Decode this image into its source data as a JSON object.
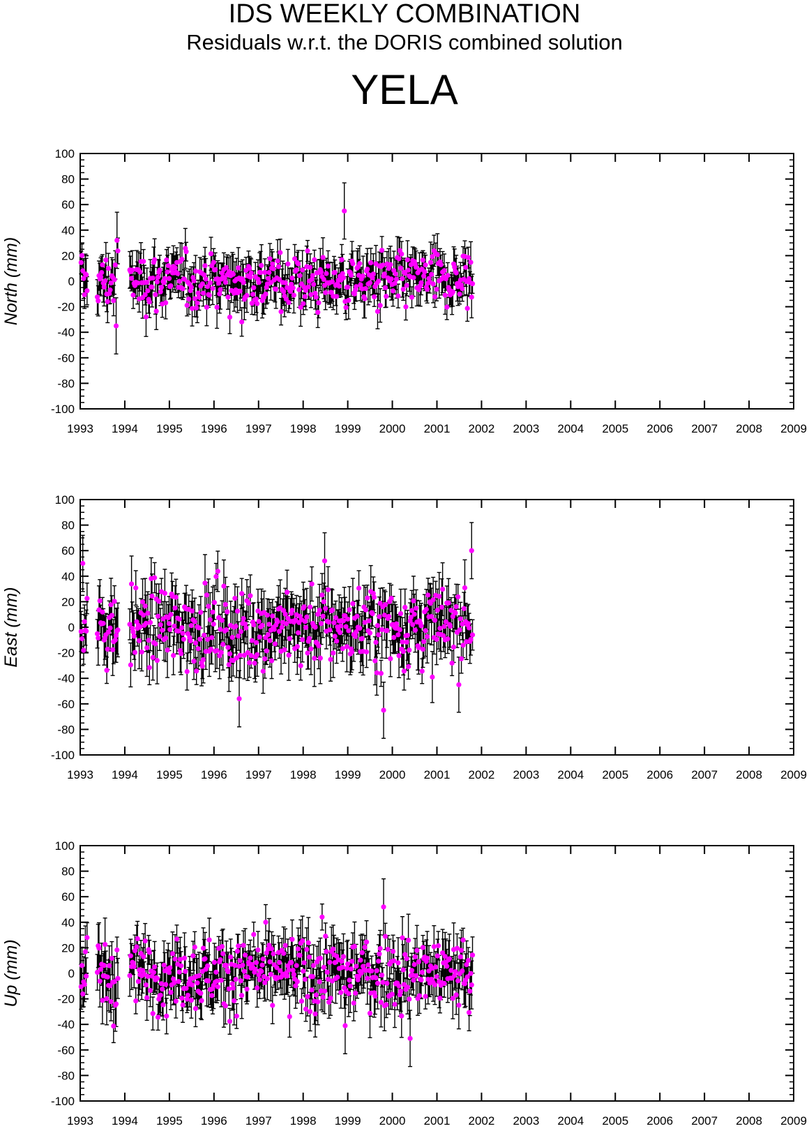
{
  "header": {
    "title": "IDS WEEKLY COMBINATION",
    "subtitle": "Residuals w.r.t. the DORIS combined solution",
    "station": "YELA"
  },
  "colors": {
    "marker": "#ff00ff",
    "errorbar": "#000000",
    "axes": "#000000"
  },
  "chart_data": [
    {
      "type": "scatter",
      "panel": "north",
      "ylabel": "North (mm)",
      "xlim": [
        1993,
        2009
      ],
      "ylim": [
        -100,
        100
      ],
      "xticks": [
        "1993",
        "1994",
        "1995",
        "1996",
        "1997",
        "1998",
        "1999",
        "2000",
        "2001",
        "2002",
        "2003",
        "2004",
        "2005",
        "2006",
        "2007",
        "2008",
        "2009"
      ],
      "yticks": [
        "100",
        "80",
        "60",
        "40",
        "20",
        "0",
        "-20",
        "-40",
        "-60",
        "-80",
        "-100"
      ],
      "series": [
        {
          "x": [],
          "y": [],
          "err": []
        }
      ]
    },
    {
      "type": "scatter",
      "panel": "east",
      "ylabel": "East (mm)",
      "xlim": [
        1993,
        2009
      ],
      "ylim": [
        -100,
        100
      ],
      "xticks": [
        "1993",
        "1994",
        "1995",
        "1996",
        "1997",
        "1998",
        "1999",
        "2000",
        "2001",
        "2002",
        "2003",
        "2004",
        "2005",
        "2006",
        "2007",
        "2008",
        "2009"
      ],
      "yticks": [
        "100",
        "80",
        "60",
        "40",
        "20",
        "0",
        "-20",
        "-40",
        "-60",
        "-80",
        "-100"
      ],
      "series": [
        {
          "x": [],
          "y": [],
          "err": []
        }
      ]
    },
    {
      "type": "scatter",
      "panel": "up",
      "ylabel": "Up (mm)",
      "xlim": [
        1993,
        2009
      ],
      "ylim": [
        -100,
        100
      ],
      "xticks": [
        "1993",
        "1994",
        "1995",
        "1996",
        "1997",
        "1998",
        "1999",
        "2000",
        "2001",
        "2002",
        "2003",
        "2004",
        "2005",
        "2006",
        "2007",
        "2008",
        "2009"
      ],
      "yticks": [
        "100",
        "80",
        "60",
        "40",
        "20",
        "0",
        "-20",
        "-40",
        "-60",
        "-80",
        "-100"
      ],
      "series": [
        {
          "x": [],
          "y": [],
          "err": []
        }
      ]
    }
  ]
}
